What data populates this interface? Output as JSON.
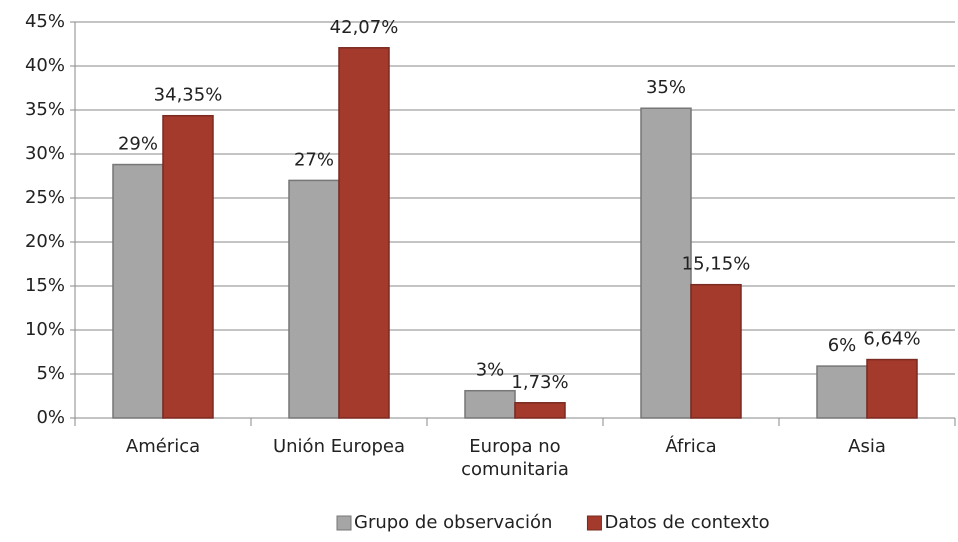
{
  "chart_data": {
    "type": "bar",
    "categories": [
      "América",
      "Unión Europea",
      "Europa no comunitaria",
      "África",
      "Asia"
    ],
    "series": [
      {
        "name": "Grupo de observación",
        "color": "#a6a6a6",
        "values": [
          28.8,
          27,
          3.1,
          35.2,
          5.9
        ],
        "value_labels": [
          "29%",
          "27%",
          "3%",
          "35%",
          "6%"
        ]
      },
      {
        "name": "Datos de contexto",
        "color": "#a33a2c",
        "values": [
          34.35,
          42.07,
          1.73,
          15.15,
          6.64
        ],
        "value_labels": [
          "34,35%",
          "42,07%",
          "1,73%",
          "15,15%",
          "6,64%"
        ]
      }
    ],
    "ylim": [
      0,
      45
    ],
    "yticks": [
      {
        "value": 0,
        "label": "0%"
      },
      {
        "value": 5,
        "label": "5%"
      },
      {
        "value": 10,
        "label": "10%"
      },
      {
        "value": 15,
        "label": "15%"
      },
      {
        "value": 20,
        "label": "20%"
      },
      {
        "value": 25,
        "label": "25%"
      },
      {
        "value": 30,
        "label": "30%"
      },
      {
        "value": 35,
        "label": "35%"
      },
      {
        "value": 40,
        "label": "40%"
      },
      {
        "value": 45,
        "label": "45%"
      }
    ],
    "grid": true,
    "legend": "bottom"
  }
}
